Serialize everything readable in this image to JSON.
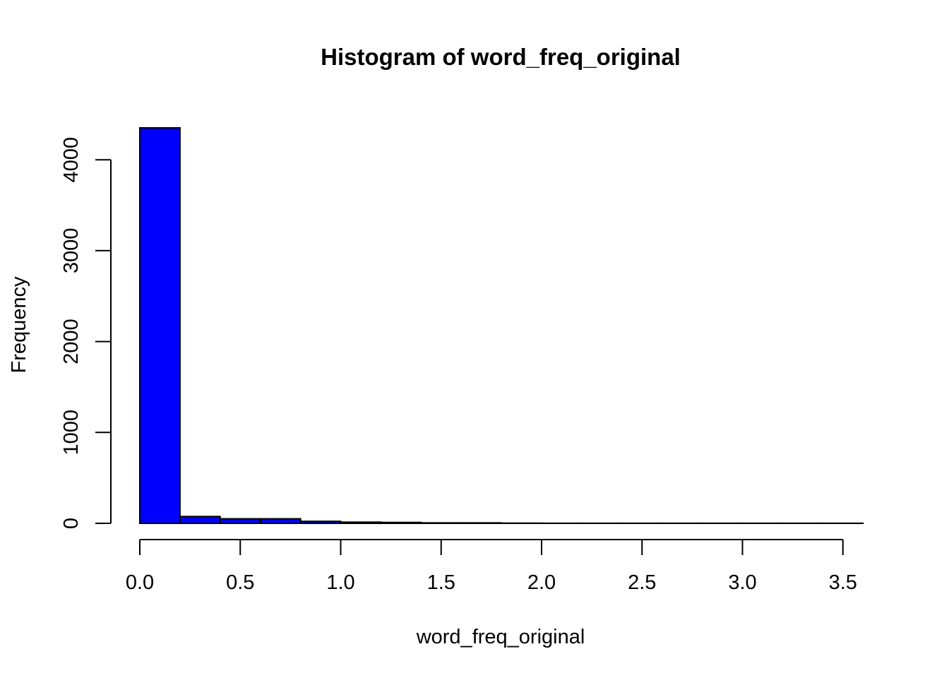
{
  "chart_data": {
    "type": "bar",
    "title": "Histogram of word_freq_original",
    "xlabel": "word_freq_original",
    "ylabel": "Frequency",
    "bar_color": "#0000ff",
    "border_color": "#000000",
    "bins": [
      {
        "start": 0.0,
        "end": 0.2,
        "count": 4351
      },
      {
        "start": 0.2,
        "end": 0.4,
        "count": 75
      },
      {
        "start": 0.4,
        "end": 0.6,
        "count": 50
      },
      {
        "start": 0.6,
        "end": 0.8,
        "count": 50
      },
      {
        "start": 0.8,
        "end": 1.0,
        "count": 22
      },
      {
        "start": 1.0,
        "end": 1.2,
        "count": 13
      },
      {
        "start": 1.2,
        "end": 1.4,
        "count": 10
      },
      {
        "start": 1.4,
        "end": 1.6,
        "count": 5
      },
      {
        "start": 1.6,
        "end": 1.8,
        "count": 5
      },
      {
        "start": 1.8,
        "end": 2.0,
        "count": 2
      },
      {
        "start": 2.0,
        "end": 2.2,
        "count": 1
      },
      {
        "start": 2.2,
        "end": 2.4,
        "count": 1
      },
      {
        "start": 2.4,
        "end": 2.6,
        "count": 1
      },
      {
        "start": 2.6,
        "end": 2.8,
        "count": 1
      },
      {
        "start": 2.8,
        "end": 3.0,
        "count": 1
      },
      {
        "start": 3.0,
        "end": 3.2,
        "count": 1
      },
      {
        "start": 3.2,
        "end": 3.4,
        "count": 1
      },
      {
        "start": 3.4,
        "end": 3.6,
        "count": 1
      }
    ],
    "x_ticks": [
      0.0,
      0.5,
      1.0,
      1.5,
      2.0,
      2.5,
      3.0,
      3.5
    ],
    "x_tick_labels": [
      "0.0",
      "0.5",
      "1.0",
      "1.5",
      "2.0",
      "2.5",
      "3.0",
      "3.5"
    ],
    "y_ticks": [
      0,
      1000,
      2000,
      3000,
      4000
    ],
    "y_tick_labels": [
      "0",
      "1000",
      "2000",
      "3000",
      "4000"
    ],
    "xlim": [
      0.0,
      3.6
    ],
    "ylim": [
      0,
      4000
    ],
    "grid": false,
    "legend": "none"
  }
}
